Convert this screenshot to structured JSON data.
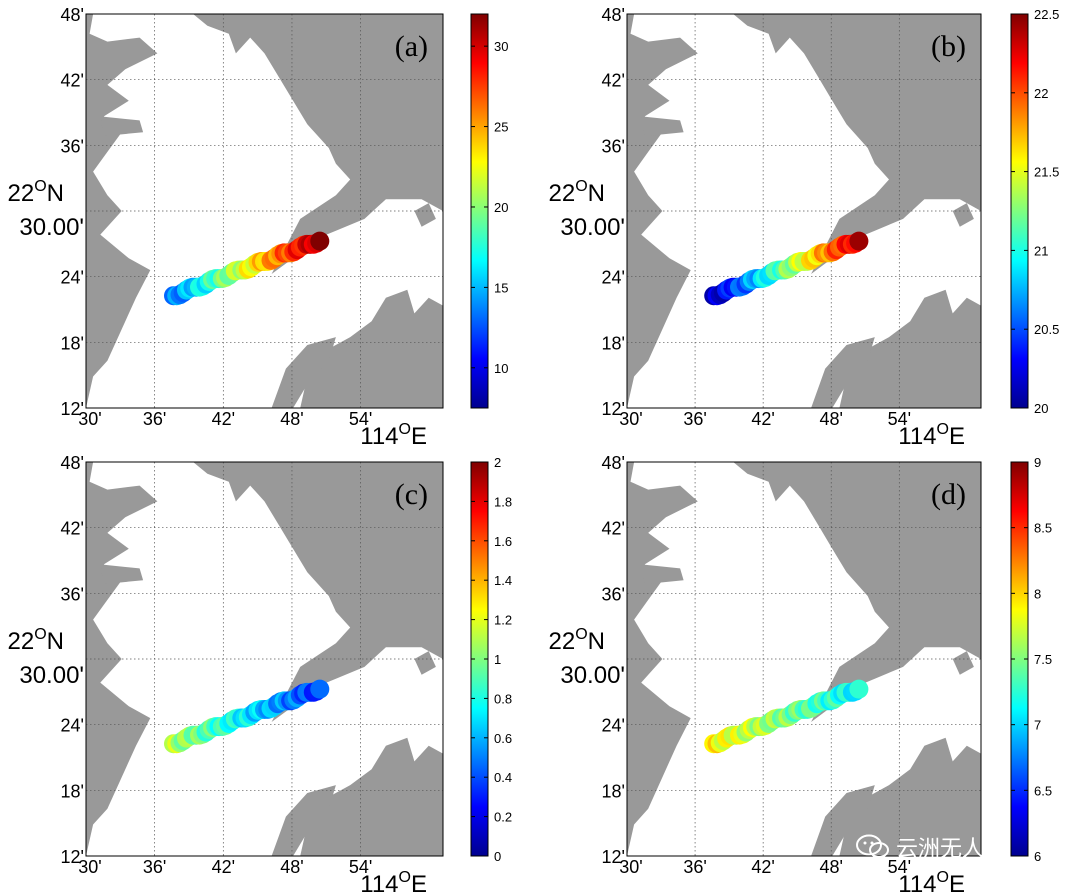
{
  "figure": {
    "watermark_text": "云洲无人船",
    "lat_labels": [
      "48'",
      "42'",
      "36'",
      "30.00'",
      "24'",
      "18'",
      "12'"
    ],
    "lat_degree": "22",
    "lat_degree_sup": "O",
    "lat_hemisphere": "N",
    "lon_labels": [
      "30'",
      "36'",
      "42'",
      "48'",
      "54'"
    ],
    "lon_degree": "114",
    "lon_degree_sup": "O",
    "lon_hemisphere": "E",
    "land_color": "#999999",
    "water_color": "#ffffff",
    "grid_color": "#555555"
  },
  "chart_data": [
    {
      "type": "scatter",
      "panel_label": "(a)",
      "colorbar_min": 7.5,
      "colorbar_max": 32,
      "colorbar_ticks": [
        "30",
        "25",
        "20",
        "15",
        "10"
      ],
      "colorbar_tick_values": [
        30,
        25,
        20,
        15,
        10
      ],
      "track_start_value": 13,
      "track_end_value": 31
    },
    {
      "type": "scatter",
      "panel_label": "(b)",
      "colorbar_min": 20,
      "colorbar_max": 22.5,
      "colorbar_ticks": [
        "22.5",
        "22",
        "21.5",
        "21",
        "20.5",
        "20"
      ],
      "colorbar_tick_values": [
        22.5,
        22,
        21.5,
        21,
        20.5,
        20
      ],
      "track_start_value": 20.1,
      "track_end_value": 22.3
    },
    {
      "type": "scatter",
      "panel_label": "(c)",
      "colorbar_min": 0,
      "colorbar_max": 2,
      "colorbar_ticks": [
        "2",
        "1.8",
        "1.6",
        "1.4",
        "1.2",
        "1",
        "0.8",
        "0.6",
        "0.4",
        "0.2",
        "0"
      ],
      "colorbar_tick_values": [
        2,
        1.8,
        1.6,
        1.4,
        1.2,
        1,
        0.8,
        0.6,
        0.4,
        0.2,
        0
      ],
      "track_start_value": 1.1,
      "track_end_value": 0.35
    },
    {
      "type": "scatter",
      "panel_label": "(d)",
      "colorbar_min": 6,
      "colorbar_max": 9,
      "colorbar_ticks": [
        "9",
        "8.5",
        "8",
        "7.5",
        "7",
        "6.5",
        "6"
      ],
      "colorbar_tick_values": [
        9,
        8.5,
        8,
        7.5,
        7,
        6.5,
        6
      ],
      "track_start_value": 7.9,
      "track_end_value": 7.1
    }
  ]
}
